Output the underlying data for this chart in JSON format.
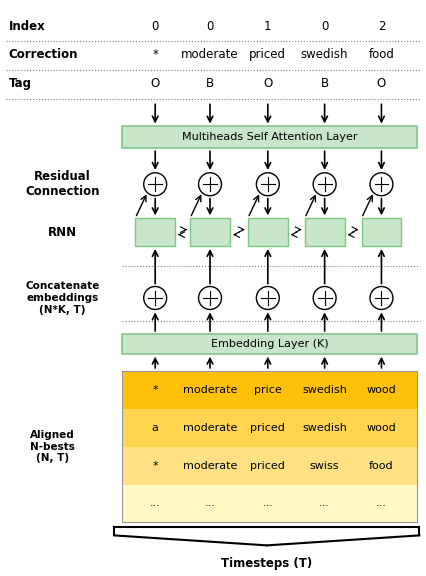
{
  "index_row": [
    "Index",
    "0",
    "0",
    "1",
    "0",
    "2"
  ],
  "correction_row": [
    "Correction",
    "*",
    "moderate",
    "priced",
    "swedish",
    "food"
  ],
  "tag_row": [
    "Tag",
    "O",
    "B",
    "O",
    "B",
    "O"
  ],
  "n_bests_rows": [
    [
      "*",
      "moderate",
      "price",
      "swedish",
      "wood"
    ],
    [
      "a",
      "moderate",
      "priced",
      "swedish",
      "wood"
    ],
    [
      "*",
      "moderate",
      "priced",
      "swiss",
      "food"
    ],
    [
      "...",
      "...",
      "...",
      "...",
      "..."
    ]
  ],
  "row_colors": [
    "#FFC107",
    "#FFD54F",
    "#FFE082",
    "#FFF9C4"
  ],
  "green_light": "#C8E6C9",
  "green_border": "#81C784",
  "label_fontsize": 8.5,
  "small_fontsize": 8
}
